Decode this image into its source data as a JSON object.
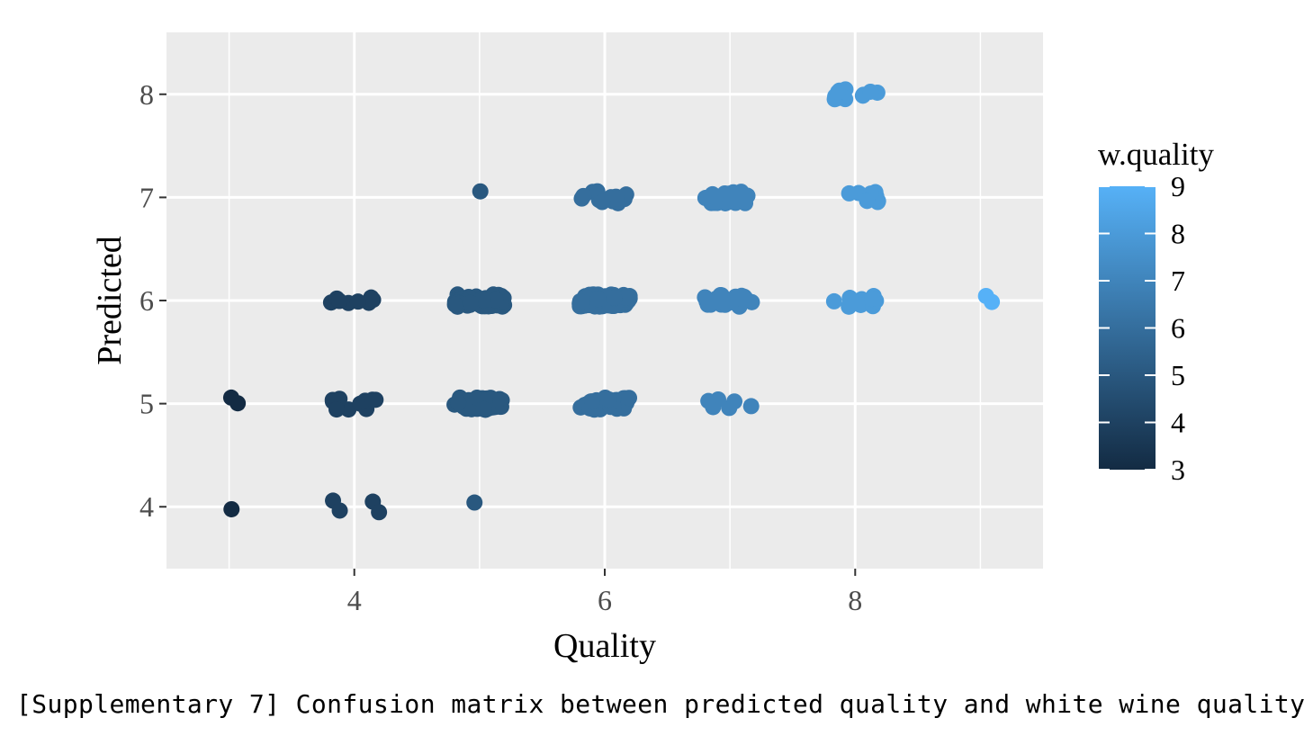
{
  "caption": "[Supplementary 7] Confusion matrix between predicted quality and white wine quality",
  "chart_data": {
    "type": "scatter",
    "title": "",
    "xlabel": "Quality",
    "ylabel": "Predicted",
    "xlim": [
      2.5,
      9.5
    ],
    "ylim": [
      3.4,
      8.6
    ],
    "x_ticks": [
      4,
      6,
      8
    ],
    "y_ticks": [
      4,
      5,
      6,
      7,
      8
    ],
    "x_tick_labels": [
      "4",
      "6",
      "8"
    ],
    "y_tick_labels": [
      "4",
      "5",
      "6",
      "7",
      "8"
    ],
    "grid": true,
    "jitter": true,
    "legend": {
      "title": "w.quality",
      "position": "right",
      "type": "continuous colorbar",
      "range": [
        3,
        9
      ],
      "ticks": [
        "9",
        "8",
        "7",
        "6",
        "5",
        "4",
        "3"
      ],
      "color_low": "#132b43",
      "color_high": "#56b1f7"
    },
    "clusters": [
      {
        "quality": 3,
        "predicted": 4,
        "count": 1
      },
      {
        "quality": 3,
        "predicted": 5,
        "count": 2
      },
      {
        "quality": 4,
        "predicted": 4,
        "count": 4
      },
      {
        "quality": 4,
        "predicted": 5,
        "count": 10
      },
      {
        "quality": 4,
        "predicted": 6,
        "count": 8
      },
      {
        "quality": 5,
        "predicted": 4,
        "count": 1
      },
      {
        "quality": 5,
        "predicted": 5,
        "count": 60
      },
      {
        "quality": 5,
        "predicted": 6,
        "count": 60
      },
      {
        "quality": 5,
        "predicted": 7,
        "count": 1
      },
      {
        "quality": 6,
        "predicted": 5,
        "count": 25
      },
      {
        "quality": 6,
        "predicted": 6,
        "count": 80
      },
      {
        "quality": 6,
        "predicted": 7,
        "count": 15
      },
      {
        "quality": 7,
        "predicted": 5,
        "count": 6
      },
      {
        "quality": 7,
        "predicted": 6,
        "count": 30
      },
      {
        "quality": 7,
        "predicted": 7,
        "count": 40
      },
      {
        "quality": 8,
        "predicted": 6,
        "count": 10
      },
      {
        "quality": 8,
        "predicted": 7,
        "count": 8
      },
      {
        "quality": 8,
        "predicted": 8,
        "count": 12
      },
      {
        "quality": 9,
        "predicted": 6,
        "count": 2
      }
    ]
  }
}
